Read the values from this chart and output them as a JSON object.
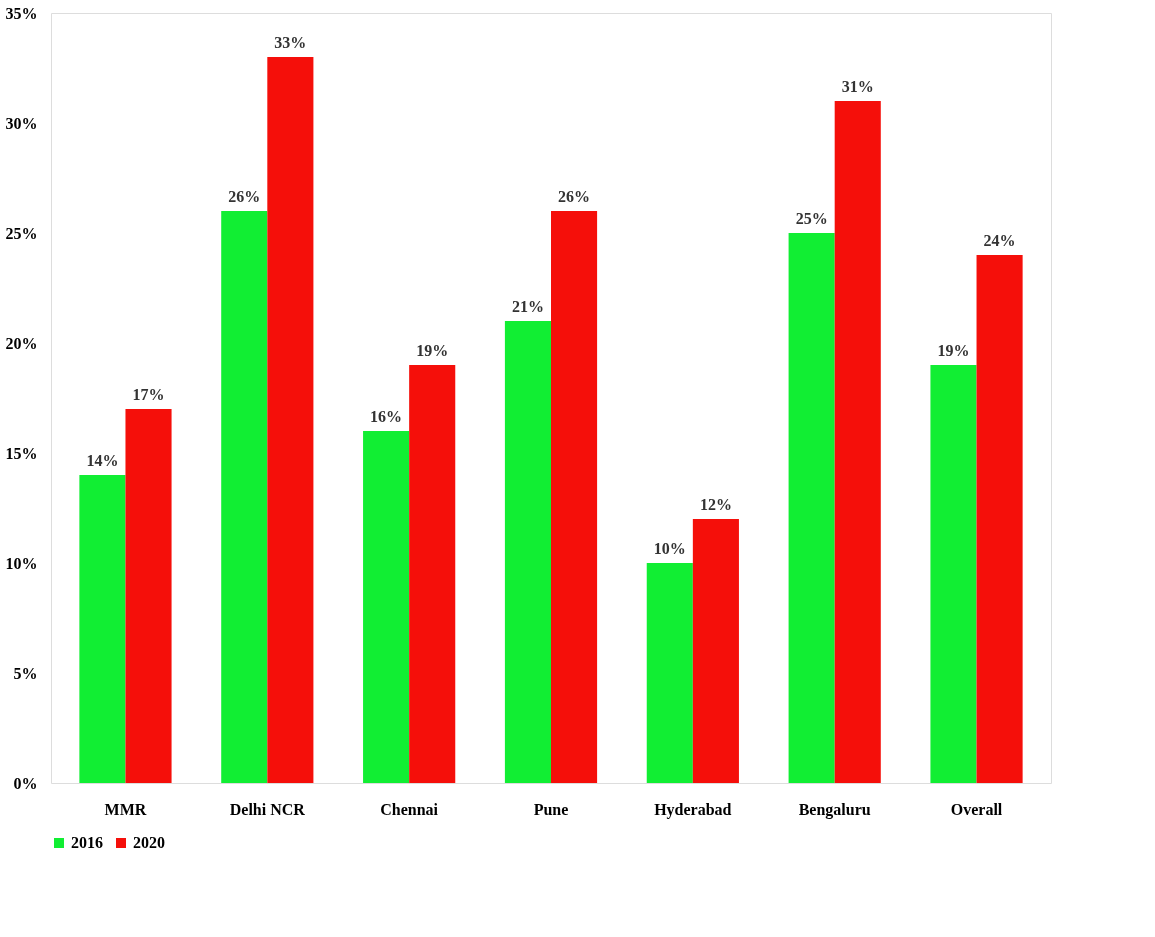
{
  "chart_data": {
    "type": "bar",
    "categories": [
      "MMR",
      "Delhi NCR",
      "Chennai",
      "Pune",
      "Hyderabad",
      "Bengaluru",
      "Overall"
    ],
    "series": [
      {
        "name": "2016",
        "color": "#11ee33",
        "values": [
          14,
          26,
          16,
          21,
          10,
          25,
          19
        ],
        "value_labels": [
          "14%",
          "26%",
          "16%",
          "21%",
          "10%",
          "25%",
          "19%"
        ]
      },
      {
        "name": "2020",
        "color": "#f50f0a",
        "values": [
          17,
          33,
          19,
          26,
          12,
          31,
          24
        ],
        "value_labels": [
          "17%",
          "33%",
          "19%",
          "26%",
          "12%",
          "31%",
          "24%"
        ]
      }
    ],
    "ylim": [
      0,
      35
    ],
    "yticks": [
      {
        "value": 0,
        "label": "0%"
      },
      {
        "value": 5,
        "label": "5%"
      },
      {
        "value": 10,
        "label": "10%"
      },
      {
        "value": 15,
        "label": "15%"
      },
      {
        "value": 20,
        "label": "20%"
      },
      {
        "value": 25,
        "label": "25%"
      },
      {
        "value": 30,
        "label": "30%"
      },
      {
        "value": 35,
        "label": "35%"
      }
    ],
    "grid": false,
    "legend": "bottom"
  }
}
